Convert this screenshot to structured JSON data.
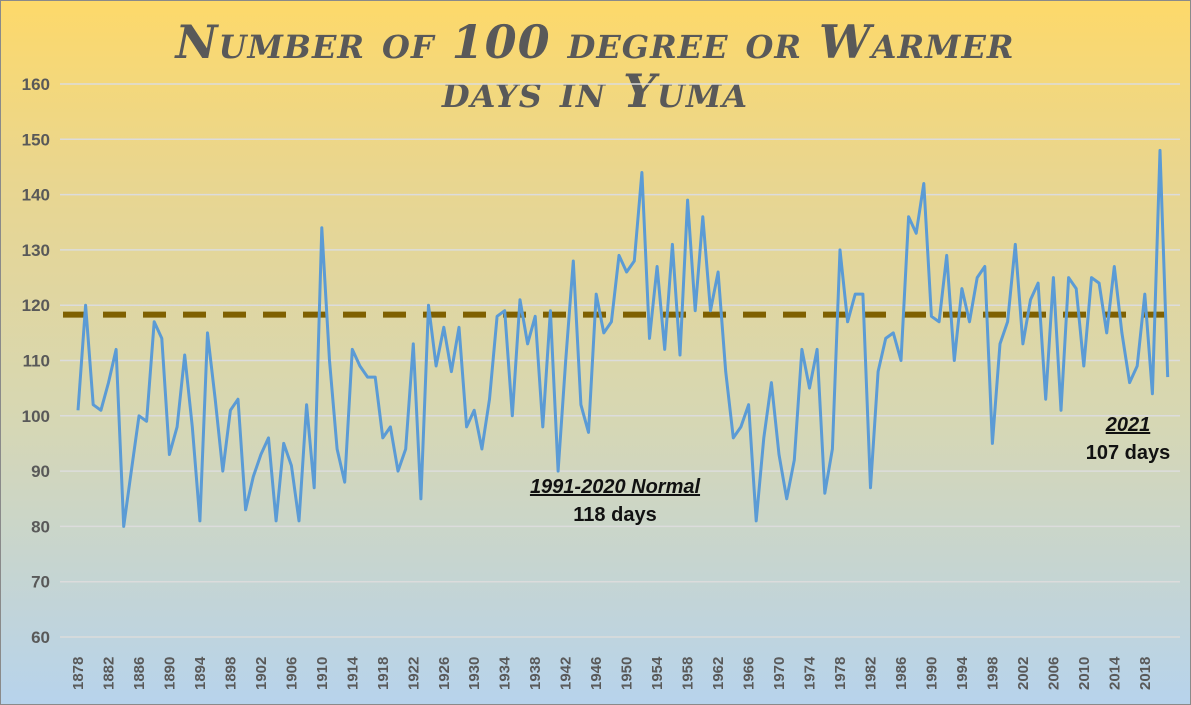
{
  "chart_data": {
    "type": "line",
    "title_line1": "Number of 100 degree or Warmer",
    "title_line2": "days in Yuma",
    "xlabel": "",
    "ylabel": "",
    "ylim": [
      60,
      160
    ],
    "yticks": [
      60,
      70,
      80,
      90,
      100,
      110,
      120,
      130,
      140,
      150,
      160
    ],
    "xtick_start": 1878,
    "xtick_step": 4,
    "xtick_end": 2018,
    "grid": "horizontal",
    "line_color": "#5b9bd5",
    "normal_color": "#7f6000",
    "normal_value": 118,
    "annotations": {
      "normal_label": "1991-2020 Normal",
      "normal_days": "118 days",
      "latest_label": "2021",
      "latest_days": "107 days"
    },
    "x_start": 1878,
    "values": [
      101,
      120,
      102,
      101,
      106,
      112,
      80,
      90,
      100,
      99,
      117,
      114,
      93,
      98,
      111,
      98,
      81,
      115,
      103,
      90,
      101,
      103,
      83,
      89,
      93,
      96,
      81,
      95,
      91,
      81,
      102,
      87,
      134,
      110,
      94,
      88,
      112,
      109,
      107,
      107,
      96,
      98,
      90,
      94,
      113,
      85,
      120,
      109,
      116,
      108,
      116,
      98,
      101,
      94,
      103,
      118,
      119,
      100,
      121,
      113,
      118,
      98,
      119,
      90,
      110,
      128,
      102,
      97,
      122,
      115,
      117,
      129,
      126,
      128,
      144,
      114,
      127,
      112,
      131,
      111,
      139,
      119,
      136,
      119,
      126,
      108,
      96,
      98,
      102,
      81,
      96,
      106,
      93,
      85,
      92,
      112,
      105,
      112,
      86,
      94,
      130,
      117,
      122,
      122,
      87,
      108,
      114,
      115,
      110,
      136,
      133,
      142,
      118,
      117,
      129,
      110,
      123,
      117,
      125,
      127,
      95,
      113,
      117,
      131,
      113,
      121,
      124,
      103,
      125,
      101,
      125,
      123,
      109,
      125,
      124,
      115,
      127,
      115,
      106,
      109,
      122,
      104,
      148,
      107
    ]
  }
}
